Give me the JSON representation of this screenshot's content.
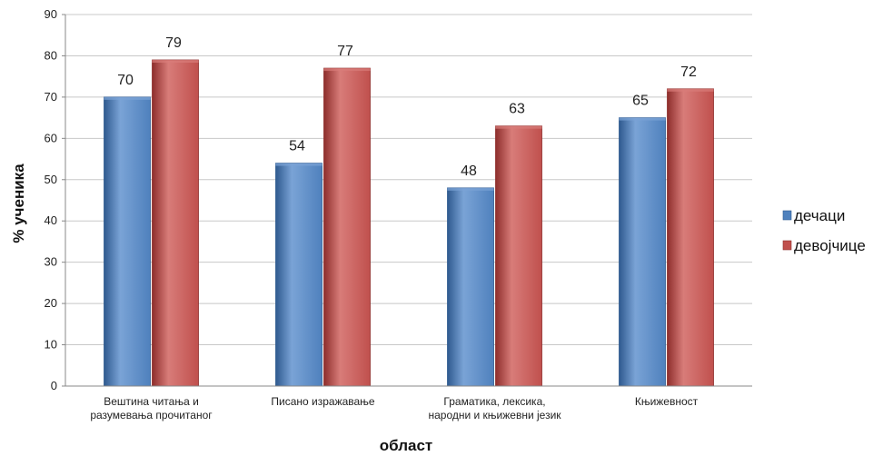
{
  "chart_data": {
    "type": "bar",
    "title": "",
    "xlabel": "област",
    "ylabel": "% ученика",
    "ylim": [
      0,
      90
    ],
    "yticks": [
      0,
      10,
      20,
      30,
      40,
      50,
      60,
      70,
      80,
      90
    ],
    "grid": true,
    "legend_position": "right",
    "categories": [
      [
        "Вештина читања и",
        "разумевања прочитаног"
      ],
      [
        "Писано изражавање"
      ],
      [
        "Граматика, лексика,",
        "народни и књижевни језик"
      ],
      [
        "Књижевност"
      ]
    ],
    "series": [
      {
        "name": "дечаци",
        "values": [
          70,
          54,
          48,
          65
        ],
        "color": "#4f81bd",
        "dark": "#2f5a8f",
        "light": "#7aa3d6"
      },
      {
        "name": "девојчице",
        "values": [
          79,
          77,
          63,
          72
        ],
        "color": "#c0504d",
        "dark": "#8e2e2c",
        "light": "#d87c79"
      }
    ]
  }
}
